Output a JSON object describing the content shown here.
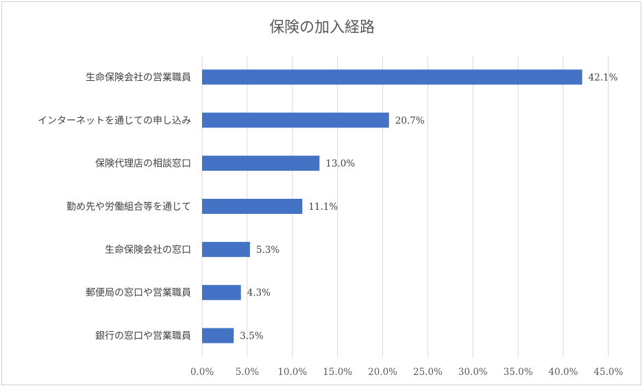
{
  "chart_data": {
    "type": "bar",
    "orientation": "horizontal",
    "title": "保険の加入経路",
    "categories": [
      "生命保険会社の営業職員",
      "インターネットを通じての申し込み",
      "保険代理店の相談窓口",
      "勤め先や労働組合等を通じて",
      "生命保険会社の窓口",
      "郵便局の窓口や営業職員",
      "銀行の窓口や営業職員"
    ],
    "values": [
      42.1,
      20.7,
      13.0,
      11.1,
      5.3,
      4.3,
      3.5
    ],
    "data_labels": [
      "42.1%",
      "20.7%",
      "13.0%",
      "11.1%",
      "5.3%",
      "4.3%",
      "3.5%"
    ],
    "xlim": [
      0,
      45
    ],
    "x_ticks": [
      0,
      5,
      10,
      15,
      20,
      25,
      30,
      35,
      40,
      45
    ],
    "x_tick_labels": [
      "0.0%",
      "5.0%",
      "10.0%",
      "15.0%",
      "20.0%",
      "25.0%",
      "30.0%",
      "35.0%",
      "40.0%",
      "45.0%"
    ],
    "grid": true,
    "legend": "none",
    "bar_color": "#4472c4"
  }
}
